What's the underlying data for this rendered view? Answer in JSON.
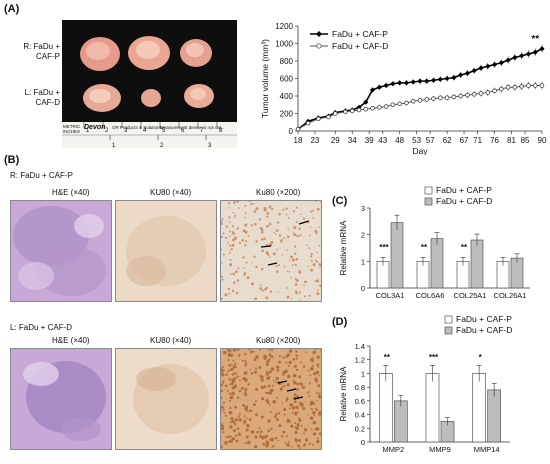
{
  "panel_a": {
    "label": "(A)",
    "row_labels": {
      "r": "R: FaDu +\nCAF-P",
      "l": "L: FaDu +\nCAF-D"
    },
    "ruler": {
      "brand": "Devon",
      "small_left": "METRIC\nINCHES",
      "caption": "Measurement device is not cal...",
      "product": "OR Products & Solutions",
      "cm_ticks": [
        "1",
        "2",
        "3",
        "4",
        "5",
        "6",
        "7",
        "8"
      ],
      "inch_ticks": [
        "1",
        "2",
        "3"
      ]
    }
  },
  "panel_b": {
    "label": "(B)",
    "row1_title": "R: FaDu + CAF-P",
    "row2_title": "L: FaDu + CAF-D",
    "col_titles_row1": [
      "H&E (×40)",
      "KU80 (×40)",
      "Ku80 (×200)"
    ],
    "col_titles_row2": [
      "H&E (×40)",
      "KU80 (×40)",
      "Ku80 (×200)"
    ]
  },
  "panel_c_label": "(C)",
  "panel_d_label": "(D)",
  "chart_data": [
    {
      "id": "tumor_volume",
      "type": "line",
      "ylabel": "Tumor volume (mm³)",
      "xlabel": "Day",
      "x": [
        18,
        21,
        24,
        27,
        29,
        32,
        34,
        36,
        38,
        40,
        42,
        44,
        46,
        48,
        50,
        52,
        54,
        56,
        58,
        60,
        62,
        64,
        66,
        68,
        70,
        72,
        74,
        76,
        78,
        80,
        82,
        84,
        86,
        88,
        90
      ],
      "xticks": [
        "18",
        "23",
        "29",
        "34",
        "39",
        "43",
        "48",
        "53",
        "57",
        "62",
        "67",
        "71",
        "76",
        "81",
        "85",
        "90"
      ],
      "ylim": [
        0,
        1200
      ],
      "yticks": [
        "0",
        "200",
        "400",
        "600",
        "800",
        "1000",
        "1200"
      ],
      "series": [
        {
          "name": "FaDu + CAF-P",
          "marker": "filled-diamond",
          "values": [
            20,
            110,
            150,
            170,
            210,
            230,
            240,
            270,
            330,
            470,
            500,
            520,
            540,
            550,
            550,
            560,
            570,
            570,
            580,
            590,
            600,
            610,
            640,
            660,
            690,
            720,
            740,
            760,
            780,
            810,
            840,
            860,
            880,
            900,
            940
          ]
        },
        {
          "name": "FaDu + CAF-D",
          "marker": "open-circle",
          "values": [
            20,
            90,
            140,
            160,
            200,
            220,
            230,
            240,
            250,
            260,
            270,
            280,
            300,
            310,
            320,
            340,
            350,
            360,
            370,
            380,
            380,
            390,
            400,
            410,
            420,
            430,
            440,
            460,
            480,
            500,
            500,
            510,
            520,
            520,
            520
          ]
        }
      ],
      "annotation": "**"
    },
    {
      "id": "col_mrna",
      "type": "bar",
      "ylabel": "Relative mRNA",
      "categories": [
        "COL3A1",
        "COL6A6",
        "COL25A1",
        "COL26A1"
      ],
      "ylim": [
        0,
        3
      ],
      "yticks": [
        "0",
        "1",
        "2",
        "3"
      ],
      "series": [
        {
          "name": "FaDu + CAF-P",
          "color": "#ffffff",
          "values": [
            1.0,
            1.0,
            1.0,
            1.0
          ]
        },
        {
          "name": "FaDu + CAF-D",
          "color": "#bdbdbd",
          "values": [
            2.45,
            1.85,
            1.8,
            1.12
          ]
        }
      ],
      "significance": [
        "***",
        "**",
        "**",
        ""
      ]
    },
    {
      "id": "mmp_mrna",
      "type": "bar",
      "ylabel": "Relative mRNA",
      "categories": [
        "MMP2",
        "MMP9",
        "MMP14"
      ],
      "ylim": [
        0,
        1.4
      ],
      "yticks": [
        "0",
        "0.2",
        "0.4",
        "0.6",
        "0.8",
        "1",
        "1.2",
        "1.4"
      ],
      "series": [
        {
          "name": "FaDu + CAF-P",
          "color": "#ffffff",
          "values": [
            1.0,
            1.0,
            1.0
          ]
        },
        {
          "name": "FaDu + CAF-D",
          "color": "#bdbdbd",
          "values": [
            0.6,
            0.3,
            0.76
          ]
        }
      ],
      "significance": [
        "**",
        "***",
        "*"
      ]
    }
  ]
}
